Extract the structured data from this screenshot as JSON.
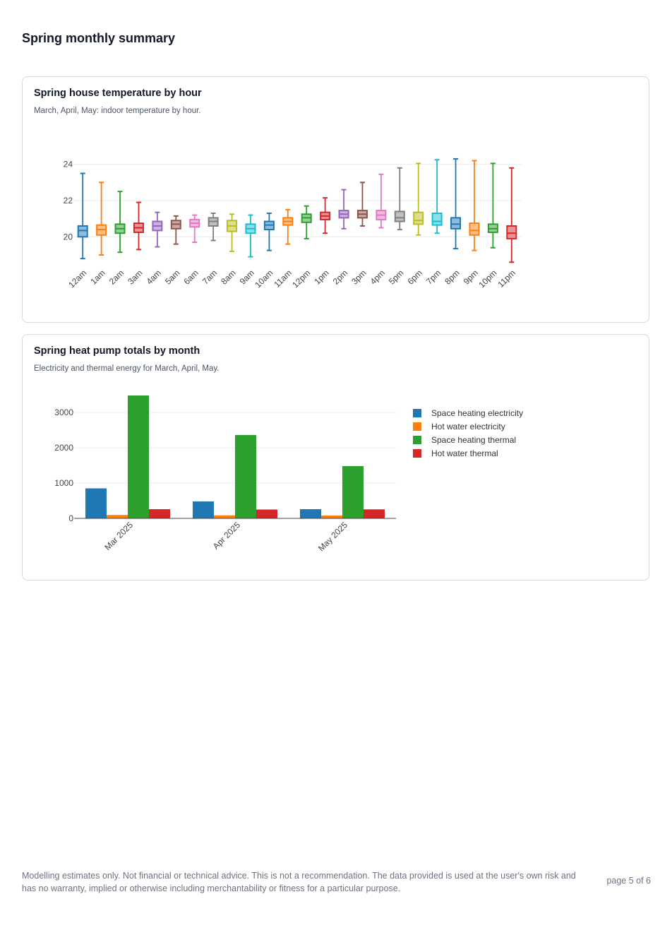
{
  "page": {
    "title": "Spring monthly summary",
    "footer": "Modelling estimates only. Not financial or technical advice. This is not a recommendation. The data provided is used at the user's own risk and has no warranty, implied or otherwise including merchantability or fitness for a particular purpose.",
    "page_number": "page 5 of 6"
  },
  "charts": [
    {
      "title": "Spring house temperature by hour",
      "subtitle": "March, April, May: indoor temperature by hour."
    },
    {
      "title": "Spring heat pump totals by month",
      "subtitle": "Electricity and thermal energy for March, April, May."
    }
  ],
  "chart_data": [
    {
      "type": "box",
      "title": "Spring house temperature by hour",
      "ylim": [
        18.3,
        25.7
      ],
      "yticks": [
        20,
        22,
        24
      ],
      "grid": true,
      "legend": "none",
      "categories": [
        "12am",
        "1am",
        "2am",
        "3am",
        "4am",
        "5am",
        "6am",
        "7am",
        "8am",
        "9am",
        "10am",
        "11am",
        "12pm",
        "1pm",
        "2pm",
        "3pm",
        "4pm",
        "5pm",
        "6pm",
        "7pm",
        "8pm",
        "9pm",
        "10pm",
        "11pm"
      ],
      "colors": [
        "#1f77b4",
        "#ff7f0e",
        "#2ca02c",
        "#d62728",
        "#9467bd",
        "#8c564b",
        "#e377c2",
        "#7f7f7f",
        "#bcbd22",
        "#17becf"
      ],
      "boxes": [
        {
          "min": 18.8,
          "q1": 20.0,
          "median": 20.35,
          "q3": 20.6,
          "max": 23.5
        },
        {
          "min": 19.0,
          "q1": 20.1,
          "median": 20.4,
          "q3": 20.65,
          "max": 23.0
        },
        {
          "min": 19.15,
          "q1": 20.2,
          "median": 20.45,
          "q3": 20.7,
          "max": 22.5
        },
        {
          "min": 19.3,
          "q1": 20.25,
          "median": 20.5,
          "q3": 20.75,
          "max": 21.9
        },
        {
          "min": 19.45,
          "q1": 20.35,
          "median": 20.6,
          "q3": 20.85,
          "max": 21.35
        },
        {
          "min": 19.6,
          "q1": 20.45,
          "median": 20.7,
          "q3": 20.9,
          "max": 21.15
        },
        {
          "min": 19.7,
          "q1": 20.55,
          "median": 20.75,
          "q3": 20.95,
          "max": 21.2
        },
        {
          "min": 19.8,
          "q1": 20.6,
          "median": 20.85,
          "q3": 21.05,
          "max": 21.3
        },
        {
          "min": 19.2,
          "q1": 20.3,
          "median": 20.6,
          "q3": 20.9,
          "max": 21.25
        },
        {
          "min": 18.9,
          "q1": 20.2,
          "median": 20.45,
          "q3": 20.7,
          "max": 21.2
        },
        {
          "min": 19.25,
          "q1": 20.4,
          "median": 20.65,
          "q3": 20.85,
          "max": 21.3
        },
        {
          "min": 19.6,
          "q1": 20.65,
          "median": 20.85,
          "q3": 21.05,
          "max": 21.5
        },
        {
          "min": 19.9,
          "q1": 20.8,
          "median": 21.05,
          "q3": 21.25,
          "max": 21.7
        },
        {
          "min": 20.2,
          "q1": 20.95,
          "median": 21.15,
          "q3": 21.35,
          "max": 22.15
        },
        {
          "min": 20.45,
          "q1": 21.05,
          "median": 21.25,
          "q3": 21.45,
          "max": 22.6
        },
        {
          "min": 20.6,
          "q1": 21.05,
          "median": 21.25,
          "q3": 21.45,
          "max": 23.0
        },
        {
          "min": 20.5,
          "q1": 20.95,
          "median": 21.2,
          "q3": 21.45,
          "max": 23.45
        },
        {
          "min": 20.4,
          "q1": 20.85,
          "median": 21.05,
          "q3": 21.4,
          "max": 23.8
        },
        {
          "min": 20.1,
          "q1": 20.7,
          "median": 20.9,
          "q3": 21.35,
          "max": 24.05
        },
        {
          "min": 20.2,
          "q1": 20.65,
          "median": 20.85,
          "q3": 21.3,
          "max": 24.25
        },
        {
          "min": 19.35,
          "q1": 20.45,
          "median": 20.7,
          "q3": 21.05,
          "max": 24.3
        },
        {
          "min": 19.25,
          "q1": 20.1,
          "median": 20.35,
          "q3": 20.75,
          "max": 24.2
        },
        {
          "min": 19.4,
          "q1": 20.25,
          "median": 20.45,
          "q3": 20.7,
          "max": 24.05
        },
        {
          "min": 18.6,
          "q1": 19.9,
          "median": 20.2,
          "q3": 20.6,
          "max": 23.8
        }
      ]
    },
    {
      "type": "bar",
      "title": "Spring heat pump totals by month",
      "ylim": [
        0,
        3600
      ],
      "yticks": [
        0,
        1000,
        2000,
        3000
      ],
      "grid": true,
      "legend": "right",
      "categories": [
        "Mar 2025",
        "Apr 2025",
        "May 2025"
      ],
      "series": [
        {
          "name": "Space heating electricity",
          "color": "#1f77b4",
          "values": [
            850,
            480,
            260
          ]
        },
        {
          "name": "Hot water electricity",
          "color": "#ff7f0e",
          "values": [
            95,
            85,
            80
          ]
        },
        {
          "name": "Space heating thermal",
          "color": "#2ca02c",
          "values": [
            3480,
            2360,
            1480
          ]
        },
        {
          "name": "Hot water thermal",
          "color": "#d62728",
          "values": [
            260,
            250,
            255
          ]
        }
      ]
    }
  ]
}
